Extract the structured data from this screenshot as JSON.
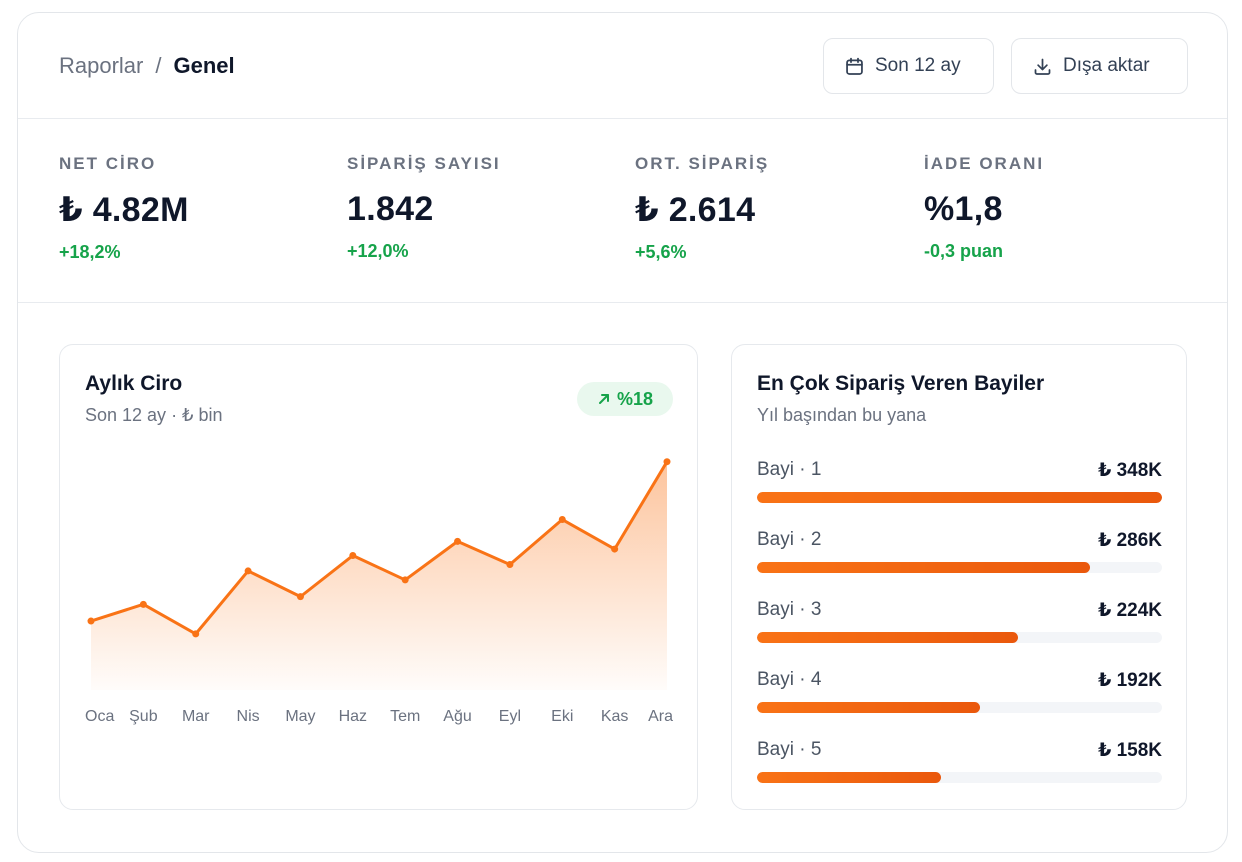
{
  "breadcrumb": {
    "parent": "Raporlar",
    "separator": "/",
    "current": "Genel"
  },
  "header": {
    "range_button": {
      "label": "Son 12 ay",
      "icon": "calendar-icon"
    },
    "export_button": {
      "label": "Dışa aktar",
      "icon": "download-icon"
    }
  },
  "kpis": [
    {
      "label": "NET CİRO",
      "value": "₺ 4.82M",
      "delta": "+18,2%"
    },
    {
      "label": "SİPARİŞ SAYISI",
      "value": "1.842",
      "delta": "+12,0%"
    },
    {
      "label": "ORT. SİPARİŞ",
      "value": "₺ 2.614",
      "delta": "+5,6%"
    },
    {
      "label": "İADE ORANI",
      "value": "%1,8",
      "delta": "-0,3 puan"
    }
  ],
  "revenue_card": {
    "title": "Aylık Ciro",
    "subtitle": "Son 12 ay · ₺ bin",
    "badge": {
      "label": "%18",
      "icon": "arrow-up-right-icon"
    }
  },
  "chart_data": {
    "type": "area",
    "categories": [
      "Oca",
      "Şub",
      "Mar",
      "Nis",
      "May",
      "Haz",
      "Tem",
      "Ağu",
      "Eyl",
      "Eki",
      "Kas",
      "Ara"
    ],
    "values": [
      343,
      356,
      333,
      382,
      362,
      394,
      375,
      405,
      387,
      422,
      399,
      467
    ],
    "ylim": [
      280,
      480
    ],
    "grid": false,
    "accent": "#f97316"
  },
  "dealers_card": {
    "title": "En Çok Sipariş Veren Bayiler",
    "subtitle": "Yıl başından bu yana",
    "max_value": 348,
    "items": [
      {
        "name": "Bayi · 1",
        "value_label": "₺ 348K",
        "value": 348
      },
      {
        "name": "Bayi · 2",
        "value_label": "₺ 286K",
        "value": 286
      },
      {
        "name": "Bayi · 3",
        "value_label": "₺ 224K",
        "value": 224
      },
      {
        "name": "Bayi · 4",
        "value_label": "₺ 192K",
        "value": 192
      },
      {
        "name": "Bayi · 5",
        "value_label": "₺ 158K",
        "value": 158
      }
    ]
  },
  "colors": {
    "accent": "#f97316",
    "positive": "#16a34a",
    "muted": "#6b7280"
  }
}
